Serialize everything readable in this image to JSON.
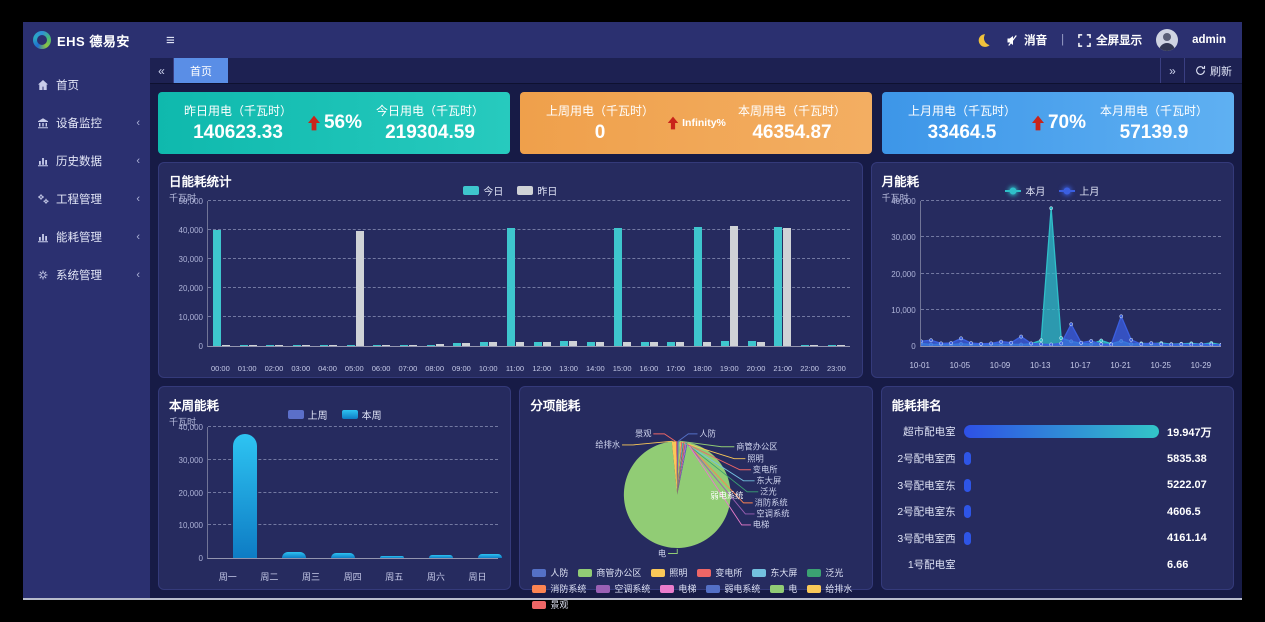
{
  "navbar": {
    "brand": "EHS 德易安",
    "mute_label": "消音",
    "divider": "|",
    "fullscreen_label": "全屏显示",
    "username": "admin"
  },
  "icons": {
    "hamburger": "≡",
    "collapse_left": "«",
    "expand_right": "»",
    "chevron": "‹"
  },
  "sidebar": {
    "items": [
      {
        "label": "首页",
        "icon": "home-icon",
        "has_children": false
      },
      {
        "label": "设备监控",
        "icon": "building-icon",
        "has_children": true
      },
      {
        "label": "历史数据",
        "icon": "bar-chart-icon",
        "has_children": true
      },
      {
        "label": "工程管理",
        "icon": "gears-icon",
        "has_children": true
      },
      {
        "label": "能耗管理",
        "icon": "bar-chart-icon",
        "has_children": true
      },
      {
        "label": "系统管理",
        "icon": "gear-icon",
        "has_children": true
      }
    ]
  },
  "tabbar": {
    "active_tab": "首页",
    "refresh_label": "刷新"
  },
  "stat_cards": [
    {
      "theme": "teal",
      "left_label": "昨日用电（千瓦时）",
      "left_value": "140623.33",
      "change": "56%",
      "right_label": "今日用电（千瓦时）",
      "right_value": "219304.59"
    },
    {
      "theme": "orange",
      "left_label": "上周用电（千瓦时）",
      "left_value": "0",
      "change": "Infinity%",
      "right_label": "本周用电（千瓦时）",
      "right_value": "46354.87"
    },
    {
      "theme": "blue",
      "left_label": "上月用电（千瓦时）",
      "left_value": "33464.5",
      "change": "70%",
      "right_label": "本月用电（千瓦时）",
      "right_value": "57139.9"
    }
  ],
  "chart_data": [
    {
      "id": "daily",
      "type": "bar",
      "title": "日能耗统计",
      "unit": "千瓦时",
      "ylim": [
        0,
        50000
      ],
      "yticks": [
        "0",
        "10,000",
        "20,000",
        "30,000",
        "40,000",
        "50,000"
      ],
      "categories": [
        "00:00",
        "01:00",
        "02:00",
        "03:00",
        "04:00",
        "05:00",
        "06:00",
        "07:00",
        "08:00",
        "09:00",
        "10:00",
        "11:00",
        "12:00",
        "13:00",
        "14:00",
        "15:00",
        "16:00",
        "17:00",
        "18:00",
        "19:00",
        "20:00",
        "21:00",
        "22:00",
        "23:00"
      ],
      "series": [
        {
          "name": "今日",
          "color": "#3ec6cd",
          "values": [
            40000,
            300,
            280,
            260,
            300,
            260,
            400,
            350,
            500,
            1050,
            1450,
            40600,
            1500,
            1700,
            1500,
            40600,
            1300,
            1500,
            41000,
            1700,
            1700,
            41000,
            300,
            260
          ]
        },
        {
          "name": "昨日",
          "color": "#cfd2d6",
          "values": [
            520,
            340,
            300,
            300,
            300,
            39700,
            520,
            420,
            620,
            1100,
            1500,
            1500,
            1550,
            1750,
            1300,
            1300,
            1320,
            1500,
            1500,
            41300,
            1300,
            40800,
            350,
            300
          ]
        }
      ]
    },
    {
      "id": "month",
      "type": "line",
      "title": "月能耗",
      "unit": "千瓦时",
      "ylim": [
        0,
        40000
      ],
      "yticks": [
        "0",
        "10,000",
        "20,000",
        "30,000",
        "40,000"
      ],
      "x": [
        "10-01",
        "10-02",
        "10-03",
        "10-04",
        "10-05",
        "10-06",
        "10-07",
        "10-08",
        "10-09",
        "10-10",
        "10-11",
        "10-12",
        "10-13",
        "10-14",
        "10-15",
        "10-16",
        "10-17",
        "10-18",
        "10-19",
        "10-20",
        "10-21",
        "10-22",
        "10-23",
        "10-24",
        "10-25",
        "10-26",
        "10-27",
        "10-28",
        "10-29",
        "10-30",
        "10-31"
      ],
      "xticks": [
        "10-01",
        "10-05",
        "10-09",
        "10-13",
        "10-17",
        "10-21",
        "10-25",
        "10-29"
      ],
      "series": [
        {
          "name": "本月",
          "color": "#2fbfc9",
          "values": [
            700,
            400,
            500,
            400,
            600,
            450,
            500,
            600,
            420,
            500,
            420,
            600,
            1600,
            38000,
            2200,
            1300,
            700,
            500,
            1500,
            600,
            1400,
            500,
            700,
            600,
            800,
            500,
            600,
            700,
            500,
            800,
            350
          ]
        },
        {
          "name": "上月",
          "color": "#3b5fe0",
          "values": [
            1300,
            1600,
            700,
            800,
            2100,
            800,
            600,
            700,
            1200,
            900,
            2600,
            700,
            500,
            400,
            700,
            6000,
            900,
            1400,
            500,
            400,
            8200,
            1700,
            500,
            800,
            500,
            400,
            500,
            400,
            500,
            400,
            300
          ]
        }
      ]
    },
    {
      "id": "week",
      "type": "bar",
      "title": "本周能耗",
      "unit": "千瓦时",
      "ylim": [
        0,
        40000
      ],
      "yticks": [
        "0",
        "10,000",
        "20,000",
        "30,000",
        "40,000"
      ],
      "categories": [
        "周一",
        "周二",
        "周三",
        "周四",
        "周五",
        "周六",
        "周日"
      ],
      "series": [
        {
          "name": "上周",
          "color": "#5b6fc9",
          "values": [
            0,
            0,
            0,
            0,
            0,
            0,
            0
          ]
        },
        {
          "name": "本周",
          "color": "#12aadd",
          "gradient": [
            "#2ec4f2",
            "#0e7cc4"
          ],
          "values": [
            38000,
            1800,
            1500,
            700,
            800,
            1300,
            500
          ]
        }
      ]
    },
    {
      "id": "pie",
      "type": "pie",
      "title": "分项能耗",
      "slices": [
        {
          "name": "人防",
          "value": 0.4,
          "color": "#5470c6"
        },
        {
          "name": "商管办公区",
          "value": 0.5,
          "color": "#91cc75"
        },
        {
          "name": "照明",
          "value": 0.3,
          "color": "#fac858"
        },
        {
          "name": "变电所",
          "value": 0.3,
          "color": "#ee6666"
        },
        {
          "name": "东大屏",
          "value": 0.25,
          "color": "#73c0de"
        },
        {
          "name": "泛光",
          "value": 0.25,
          "color": "#3ba272"
        },
        {
          "name": "消防系统",
          "value": 0.3,
          "color": "#fc8452"
        },
        {
          "name": "空调系统",
          "value": 0.3,
          "color": "#9a60b4"
        },
        {
          "name": "电梯",
          "value": 0.25,
          "color": "#ea7ccc"
        },
        {
          "name": "弱电系统",
          "value": 0.3,
          "color": "#5470c6"
        },
        {
          "name": "电",
          "value": 95.2,
          "color": "#91cc75"
        },
        {
          "name": "给排水",
          "value": 1.3,
          "color": "#fac858"
        },
        {
          "name": "景观",
          "value": 0.35,
          "color": "#ee6666"
        }
      ]
    },
    {
      "id": "ranking",
      "type": "bar",
      "title": "能耗排名",
      "items": [
        {
          "name": "超市配电室",
          "value": 199470,
          "label": "19.947万"
        },
        {
          "name": "2号配电室西",
          "value": 5835.38,
          "label": "5835.38"
        },
        {
          "name": "3号配电室东",
          "value": 5222.07,
          "label": "5222.07"
        },
        {
          "name": "2号配电室东",
          "value": 4606.5,
          "label": "4606.5"
        },
        {
          "name": "3号配电室西",
          "value": 4161.14,
          "label": "4161.14"
        },
        {
          "name": "1号配电室",
          "value": 6.66,
          "label": "6.66"
        }
      ]
    }
  ]
}
